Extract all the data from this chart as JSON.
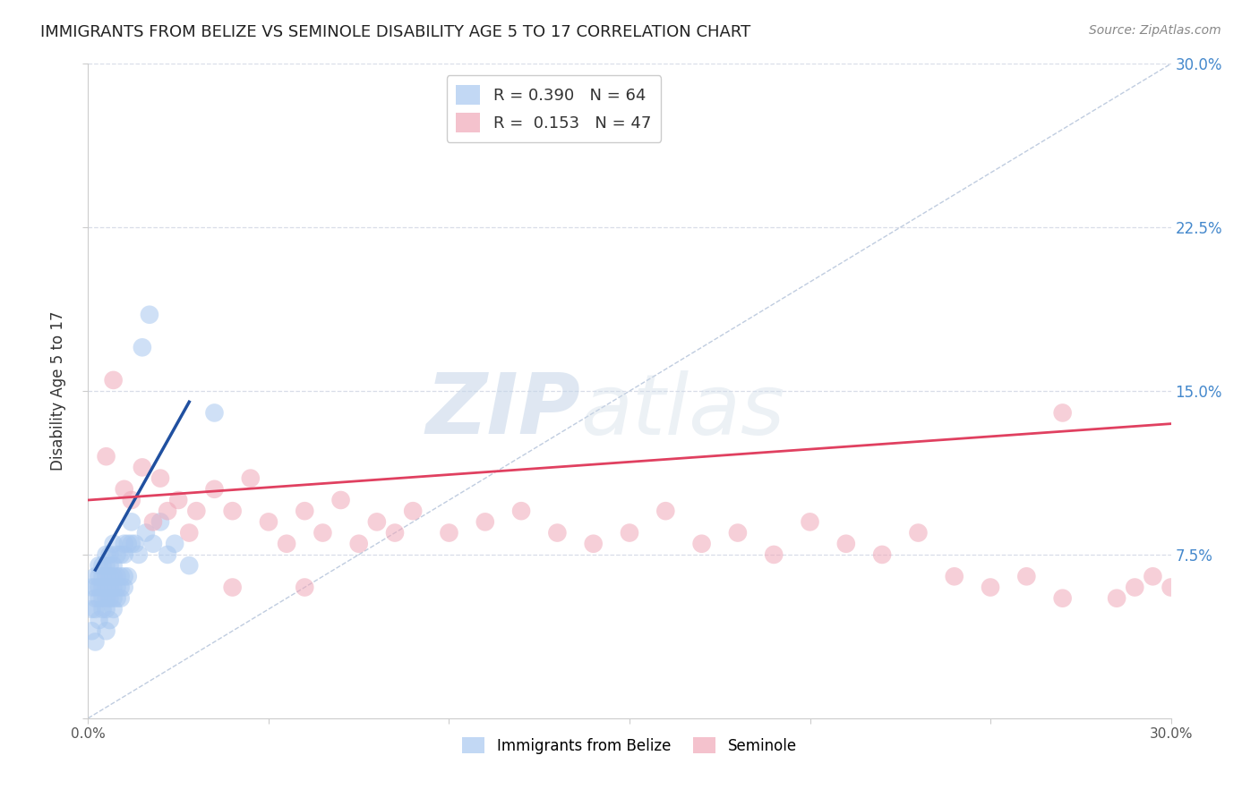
{
  "title": "IMMIGRANTS FROM BELIZE VS SEMINOLE DISABILITY AGE 5 TO 17 CORRELATION CHART",
  "source": "Source: ZipAtlas.com",
  "ylabel": "Disability Age 5 to 17",
  "legend_label1": "Immigrants from Belize",
  "legend_label2": "Seminole",
  "R1": 0.39,
  "N1": 64,
  "R2": 0.153,
  "N2": 47,
  "color_blue": "#a8c8f0",
  "color_pink": "#f0a8b8",
  "color_blue_line": "#2050a0",
  "color_pink_line": "#e04060",
  "color_diag": "#b0c0d8",
  "xmin": 0.0,
  "xmax": 0.3,
  "ymin": 0.0,
  "ymax": 0.3,
  "yticks": [
    0.0,
    0.075,
    0.15,
    0.225,
    0.3
  ],
  "xticks": [
    0.0,
    0.05,
    0.1,
    0.15,
    0.2,
    0.25,
    0.3
  ],
  "blue_scatter_x": [
    0.001,
    0.001,
    0.001,
    0.002,
    0.002,
    0.002,
    0.002,
    0.002,
    0.003,
    0.003,
    0.003,
    0.003,
    0.003,
    0.004,
    0.004,
    0.004,
    0.004,
    0.004,
    0.005,
    0.005,
    0.005,
    0.005,
    0.005,
    0.005,
    0.005,
    0.006,
    0.006,
    0.006,
    0.006,
    0.006,
    0.006,
    0.007,
    0.007,
    0.007,
    0.007,
    0.007,
    0.007,
    0.008,
    0.008,
    0.008,
    0.008,
    0.009,
    0.009,
    0.009,
    0.009,
    0.01,
    0.01,
    0.01,
    0.01,
    0.011,
    0.011,
    0.012,
    0.012,
    0.013,
    0.014,
    0.015,
    0.016,
    0.017,
    0.018,
    0.02,
    0.022,
    0.024,
    0.028,
    0.035
  ],
  "blue_scatter_y": [
    0.04,
    0.05,
    0.06,
    0.035,
    0.05,
    0.055,
    0.06,
    0.065,
    0.045,
    0.055,
    0.06,
    0.065,
    0.07,
    0.05,
    0.055,
    0.06,
    0.065,
    0.07,
    0.04,
    0.05,
    0.055,
    0.06,
    0.065,
    0.07,
    0.075,
    0.045,
    0.055,
    0.06,
    0.065,
    0.07,
    0.075,
    0.05,
    0.055,
    0.06,
    0.065,
    0.07,
    0.08,
    0.055,
    0.06,
    0.065,
    0.075,
    0.055,
    0.06,
    0.065,
    0.075,
    0.06,
    0.065,
    0.075,
    0.08,
    0.065,
    0.08,
    0.08,
    0.09,
    0.08,
    0.075,
    0.17,
    0.085,
    0.185,
    0.08,
    0.09,
    0.075,
    0.08,
    0.07,
    0.14
  ],
  "pink_scatter_x": [
    0.005,
    0.007,
    0.01,
    0.012,
    0.015,
    0.018,
    0.02,
    0.022,
    0.025,
    0.028,
    0.03,
    0.035,
    0.04,
    0.045,
    0.05,
    0.055,
    0.06,
    0.065,
    0.07,
    0.075,
    0.08,
    0.085,
    0.09,
    0.1,
    0.11,
    0.12,
    0.13,
    0.14,
    0.15,
    0.16,
    0.17,
    0.18,
    0.19,
    0.2,
    0.21,
    0.22,
    0.23,
    0.24,
    0.25,
    0.26,
    0.27,
    0.285,
    0.29,
    0.295,
    0.3,
    0.04,
    0.06
  ],
  "pink_scatter_y": [
    0.12,
    0.155,
    0.105,
    0.1,
    0.115,
    0.09,
    0.11,
    0.095,
    0.1,
    0.085,
    0.095,
    0.105,
    0.095,
    0.11,
    0.09,
    0.08,
    0.095,
    0.085,
    0.1,
    0.08,
    0.09,
    0.085,
    0.095,
    0.085,
    0.09,
    0.095,
    0.085,
    0.08,
    0.085,
    0.095,
    0.08,
    0.085,
    0.075,
    0.09,
    0.08,
    0.075,
    0.085,
    0.065,
    0.06,
    0.065,
    0.055,
    0.055,
    0.06,
    0.065,
    0.06,
    0.06,
    0.06
  ],
  "pink_outlier_x": [
    0.27
  ],
  "pink_outlier_y": [
    0.14
  ],
  "blue_line_x": [
    0.002,
    0.028
  ],
  "blue_line_y": [
    0.068,
    0.145
  ],
  "pink_line_x": [
    0.0,
    0.3
  ],
  "pink_line_y": [
    0.1,
    0.135
  ],
  "diag_line_x": [
    0.0,
    0.3
  ],
  "diag_line_y": [
    0.0,
    0.3
  ],
  "watermark_zip": "ZIP",
  "watermark_atlas": "atlas",
  "background_color": "#ffffff",
  "grid_color": "#d8dde8"
}
